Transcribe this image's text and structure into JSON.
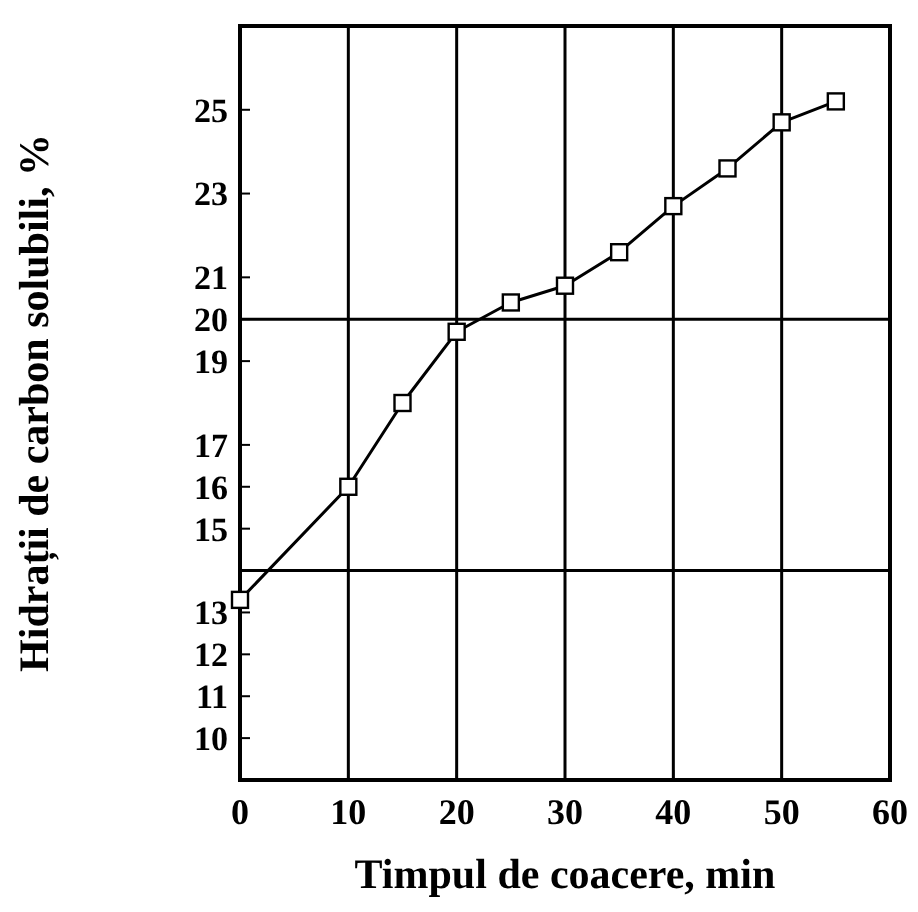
{
  "chart_data": {
    "type": "line",
    "xlabel": "Timpul de coacere, min",
    "ylabel": "Hidrații de carbon solubili, %",
    "x": [
      0,
      10,
      15,
      20,
      25,
      30,
      35,
      40,
      45,
      50,
      55
    ],
    "series": [
      {
        "color": "#000000",
        "values": [
          13.3,
          16,
          18,
          19.7,
          20.4,
          20.8,
          21.6,
          22.7,
          23.6,
          24.7,
          25.2
        ]
      }
    ],
    "xlim": [
      0,
      60
    ],
    "xticks": [
      0,
      10,
      20,
      30,
      40,
      50,
      60
    ],
    "ylim": [
      9,
      27
    ],
    "yticks": [
      10,
      11,
      12,
      13,
      15,
      16,
      17,
      19,
      20,
      21,
      23,
      25
    ],
    "grid": "x",
    "marker": "square",
    "line_style": "solid",
    "ref_lines": [
      {
        "axis": "y",
        "value": 20,
        "color": "#000000"
      },
      {
        "axis": "y",
        "value": 14,
        "color": "#000000"
      }
    ]
  }
}
